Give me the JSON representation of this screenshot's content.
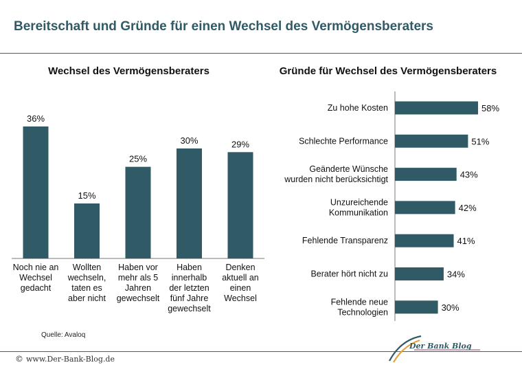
{
  "page": {
    "title": "Bereitschaft und Gründe für einen Wechsel des Vermögensberaters",
    "source": "Quelle:  Avaloq",
    "footer_url": "www.Der-Bank-Blog.de",
    "footer_copyright": "©",
    "logo_text": "Der Bank Blog"
  },
  "colors": {
    "bar": "#2f5a66",
    "title": "#2f5a66",
    "rule": "#8c3a6b"
  },
  "chart_data": [
    {
      "type": "bar",
      "title": "Wechsel des Vermögensberaters",
      "categories": [
        [
          "Noch nie an",
          "Wechsel",
          "gedacht"
        ],
        [
          "Wollten",
          "wechseln,",
          "taten es",
          "aber nicht"
        ],
        [
          "Haben vor",
          "mehr als 5",
          "Jahren",
          "gewechselt"
        ],
        [
          "Haben",
          "innerhalb",
          "der letzten",
          "fünf Jahre",
          "gewechselt"
        ],
        [
          "Denken",
          "aktuell an",
          "einen",
          "Wechsel"
        ]
      ],
      "values": [
        36,
        15,
        25,
        30,
        29
      ],
      "value_labels": [
        "36%",
        "15%",
        "25%",
        "30%",
        "29%"
      ],
      "ylim": [
        0,
        40
      ]
    },
    {
      "type": "bar",
      "orientation": "horizontal",
      "title": "Gründe für Wechsel des Vermögensberaters",
      "categories": [
        [
          "Zu hohe Kosten"
        ],
        [
          "Schlechte Performance"
        ],
        [
          "Geänderte Wünsche",
          "wurden nicht berücksichtigt"
        ],
        [
          "Unzureichende",
          "Kommunikation"
        ],
        [
          "Fehlende Transparenz"
        ],
        [
          "Berater hört nicht zu"
        ],
        [
          "Fehlende neue",
          "Technologien"
        ]
      ],
      "values": [
        58,
        51,
        43,
        42,
        41,
        34,
        30
      ],
      "value_labels": [
        "58%",
        "51%",
        "43%",
        "42%",
        "41%",
        "34%",
        "30%"
      ],
      "xlim": [
        0,
        60
      ]
    }
  ]
}
